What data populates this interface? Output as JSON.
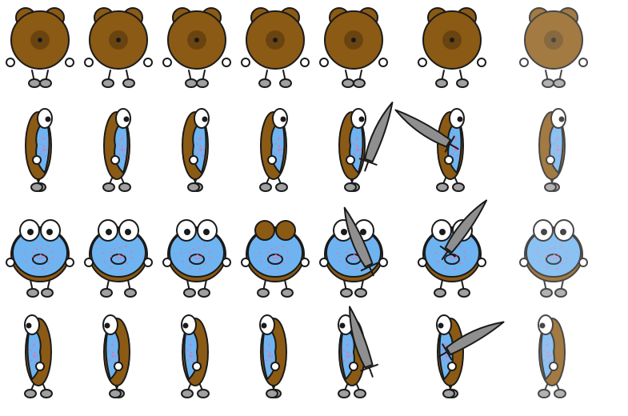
{
  "sprite_sheet": {
    "rows": [
      {
        "name": "walk-up",
        "facing": "back",
        "frames": [
          "walk",
          "walk",
          "walk",
          "walk",
          "attack",
          "attack",
          "hurt"
        ]
      },
      {
        "name": "walk-right",
        "facing": "right",
        "frames": [
          "walk",
          "walk",
          "walk",
          "walk",
          "attack",
          "attack",
          "hurt"
        ]
      },
      {
        "name": "walk-down",
        "facing": "front",
        "frames": [
          "walk",
          "walk",
          "walk",
          "blink",
          "attack",
          "attack",
          "hurt"
        ]
      },
      {
        "name": "walk-left",
        "facing": "left",
        "frames": [
          "walk",
          "walk",
          "walk",
          "walk",
          "attack",
          "attack",
          "hurt"
        ]
      }
    ],
    "colors": {
      "dough": "#8b5a14",
      "dough_dark": "#6a4410",
      "frosting": "#6fb4f0",
      "sprinkles": "#e86fa8",
      "eye_white": "#ffffff",
      "pupil": "#1a1a1a",
      "hand": "#ffffff",
      "foot": "#a0a0a0",
      "sword": "#8f8f8f",
      "outline": "#1a1a1a"
    }
  }
}
